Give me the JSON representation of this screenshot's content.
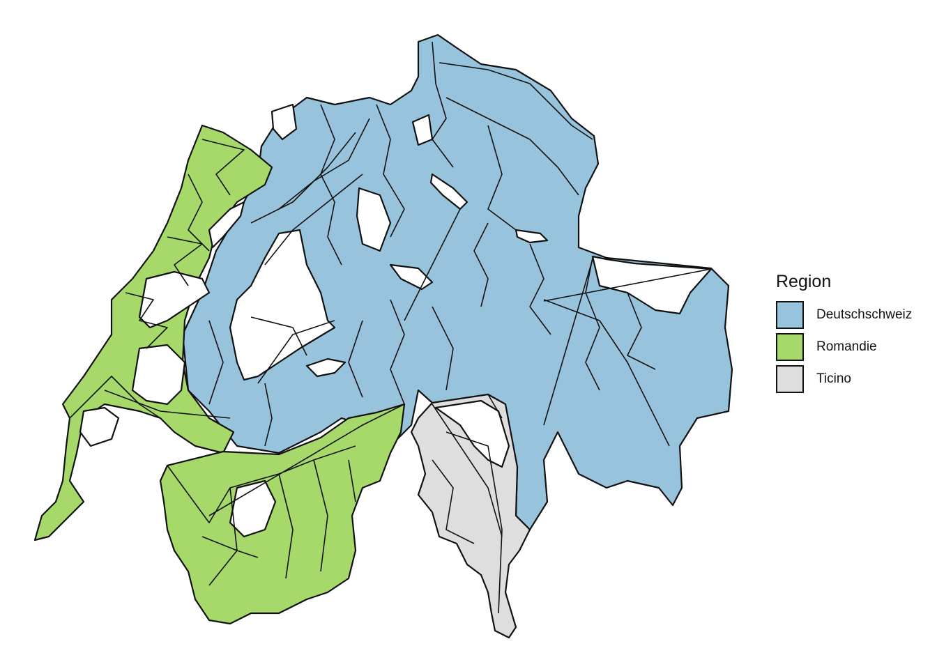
{
  "legend": {
    "title": "Region",
    "items": [
      {
        "label": "Deutschschweiz",
        "color": "#97c3dc"
      },
      {
        "label": "Romandie",
        "color": "#a6d96a"
      },
      {
        "label": "Ticino",
        "color": "#dedede"
      }
    ]
  },
  "colors": {
    "deutschschweiz": "#97c3dc",
    "romandie": "#a6d96a",
    "ticino": "#dedede",
    "unassigned": "#ffffff",
    "border": "#111111"
  }
}
